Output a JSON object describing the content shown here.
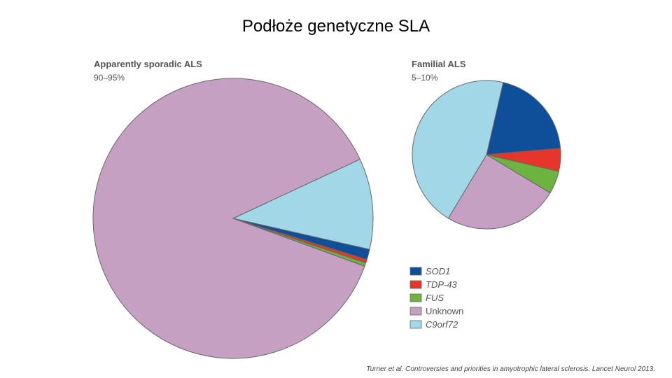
{
  "slide": {
    "title": "Podłoże genetyczne SLA",
    "citation": "Turner et al. Controversies and priorities in amyotrophic lateral sclerosis. Lancet Neurol 2013."
  },
  "chart_data": [
    {
      "type": "pie",
      "title": "Apparently sporadic ALS",
      "subtitle": "90–95%",
      "slices": [
        {
          "label": "C9orf72",
          "value": 10.5,
          "color": "#a2d7e8"
        },
        {
          "label": "SOD1",
          "value": 1.2,
          "color": "#0f4f9a"
        },
        {
          "label": "TDP-43",
          "value": 0.4,
          "color": "#e8352b"
        },
        {
          "label": "FUS",
          "value": 0.4,
          "color": "#6db33f"
        },
        {
          "label": "Unknown",
          "value": 87.5,
          "color": "#c6a0c2"
        }
      ]
    },
    {
      "type": "pie",
      "title": "Familial ALS",
      "subtitle": "5–10%",
      "slices": [
        {
          "label": "SOD1",
          "value": 20,
          "color": "#0f4f9a"
        },
        {
          "label": "TDP-43",
          "value": 5,
          "color": "#e8352b"
        },
        {
          "label": "FUS",
          "value": 5,
          "color": "#6db33f"
        },
        {
          "label": "Unknown",
          "value": 25,
          "color": "#c6a0c2"
        },
        {
          "label": "C9orf72",
          "value": 45,
          "color": "#a2d7e8"
        }
      ]
    }
  ],
  "legend": {
    "placement": "bottom-right",
    "items": [
      {
        "label": "SOD1",
        "color": "#0f4f9a"
      },
      {
        "label": "TDP-43",
        "color": "#e8352b"
      },
      {
        "label": "FUS",
        "color": "#6db33f"
      },
      {
        "label": "Unknown",
        "color": "#c6a0c2"
      },
      {
        "label": "C9orf72",
        "color": "#a2d7e8"
      }
    ]
  }
}
